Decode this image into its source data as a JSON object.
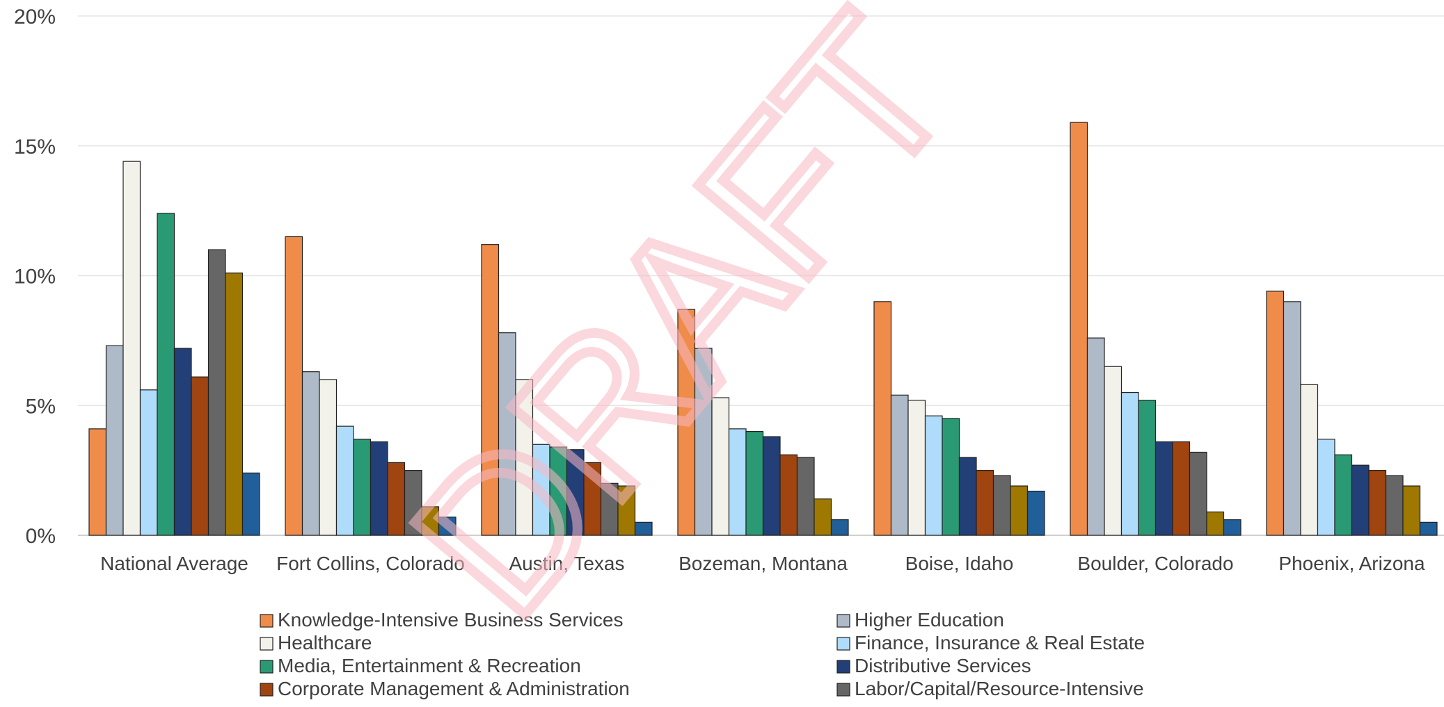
{
  "chart_data": {
    "type": "bar",
    "title": "",
    "xlabel": "",
    "ylabel": "",
    "ylim": [
      0,
      20
    ],
    "yticks": [
      "0%",
      "5%",
      "10%",
      "15%",
      "20%"
    ],
    "ytick_values": [
      0,
      5,
      10,
      15,
      20
    ],
    "grid": true,
    "legend_position": "bottom",
    "categories": [
      "National Average",
      "Fort Collins, Colorado",
      "Austin, Texas",
      "Bozeman, Montana",
      "Boise, Idaho",
      "Boulder, Colorado",
      "Phoenix, Arizona"
    ],
    "series": [
      {
        "name": "Knowledge-Intensive Business Services",
        "color": "#f08c4a",
        "values": [
          4.1,
          11.5,
          11.2,
          8.7,
          9.0,
          15.9,
          9.4
        ]
      },
      {
        "name": "Higher Education",
        "color": "#aebac8",
        "values": [
          7.3,
          6.3,
          7.8,
          7.2,
          5.4,
          7.6,
          9.0
        ]
      },
      {
        "name": "Healthcare",
        "color": "#f2f2ea",
        "values": [
          14.4,
          6.0,
          6.0,
          5.3,
          5.2,
          6.5,
          5.8
        ]
      },
      {
        "name": "Finance, Insurance & Real Estate",
        "color": "#aedcfa",
        "values": [
          5.6,
          4.2,
          3.5,
          4.1,
          4.6,
          5.5,
          3.7
        ]
      },
      {
        "name": "Media, Entertainment & Recreation",
        "color": "#2a9a74",
        "values": [
          12.4,
          3.7,
          3.4,
          4.0,
          4.5,
          5.2,
          3.1
        ]
      },
      {
        "name": "Distributive Services",
        "color": "#233f78",
        "values": [
          7.2,
          3.6,
          3.3,
          3.8,
          3.0,
          3.6,
          2.7
        ]
      },
      {
        "name": "Corporate Management & Administration",
        "color": "#a04410",
        "values": [
          6.1,
          2.8,
          2.8,
          3.1,
          2.5,
          3.6,
          2.5
        ]
      },
      {
        "name": "Labor/Capital/Resource-Intensive",
        "color": "#666666",
        "values": [
          11.0,
          2.5,
          2.0,
          3.0,
          2.3,
          3.2,
          2.3
        ]
      },
      {
        "name": "",
        "color": "#9e7800",
        "values": [
          10.1,
          1.1,
          1.9,
          1.4,
          1.9,
          0.9,
          1.9
        ]
      },
      {
        "name": "",
        "color": "#215f9a",
        "values": [
          2.4,
          0.7,
          0.5,
          0.6,
          1.7,
          0.6,
          0.5
        ]
      }
    ],
    "annotations": [
      {
        "text": "DRAFT",
        "kind": "watermark"
      }
    ]
  }
}
